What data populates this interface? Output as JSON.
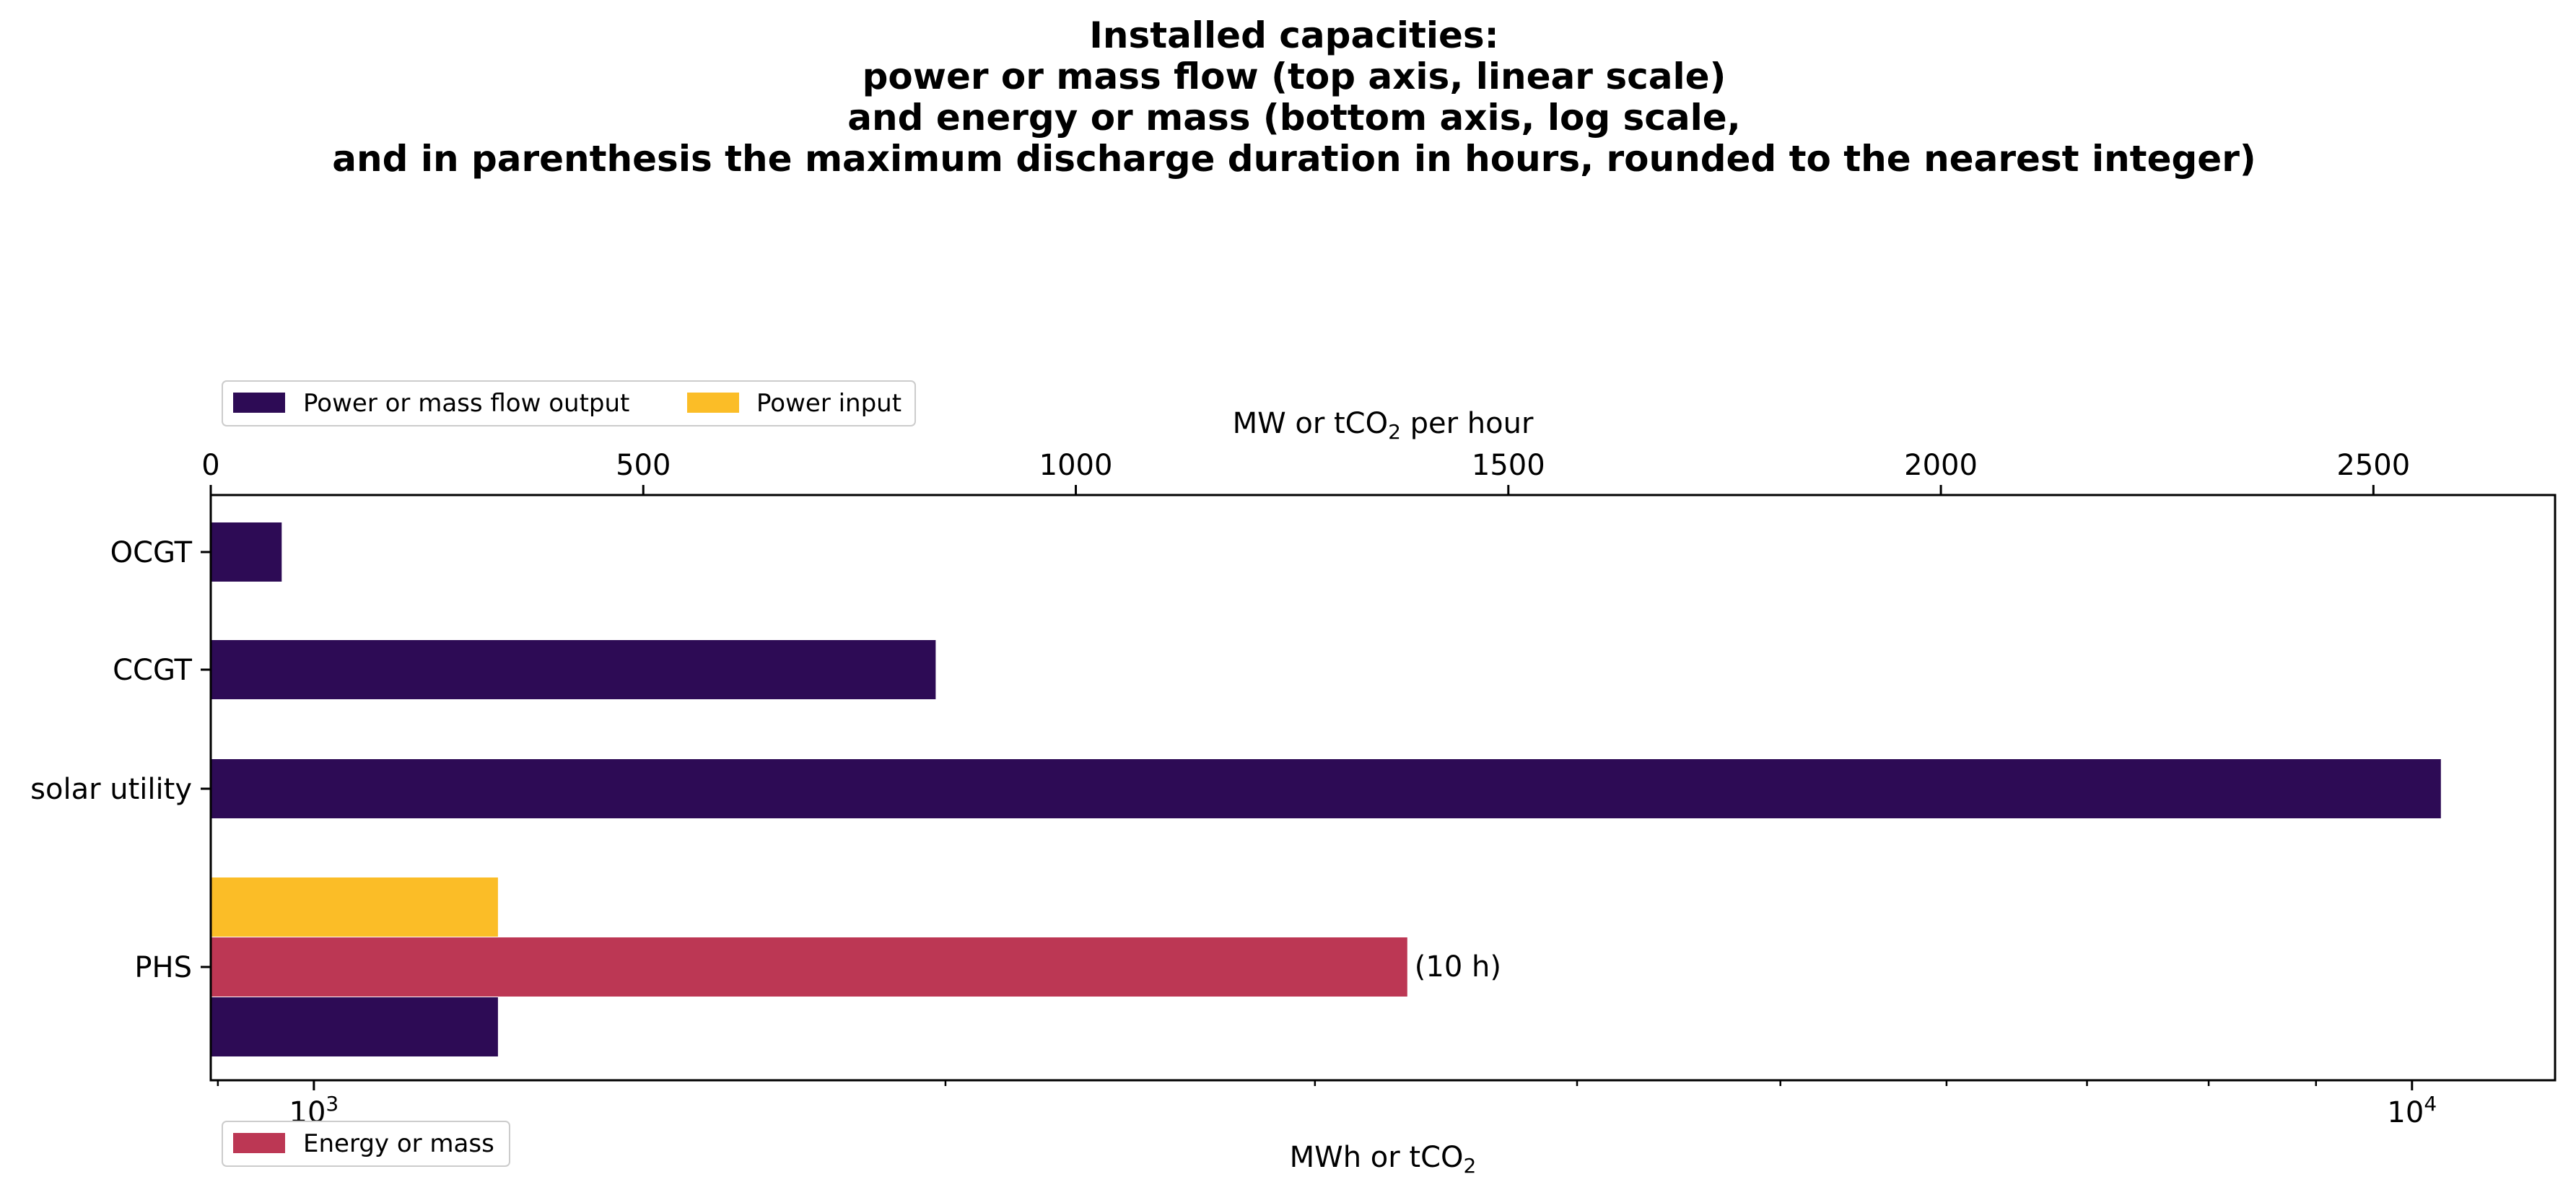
{
  "chart_data": {
    "type": "bar",
    "orientation": "horizontal",
    "title_lines": [
      "Installed capacities:",
      "power or mass flow (top axis, linear scale)",
      "and energy or mass (bottom axis, log scale,",
      "and in parenthesis the maximum discharge duration in hours, rounded to the nearest integer)"
    ],
    "categories": [
      "OCGT",
      "CCGT",
      "solar utility",
      "PHS"
    ],
    "top_axis": {
      "label_prefix": "MW or tCO",
      "label_sub": "2",
      "label_suffix": " per hour",
      "scale": "linear",
      "range": [
        0,
        2710
      ],
      "ticks": [
        0,
        500,
        1000,
        1500,
        2000,
        2500
      ],
      "tick_labels": [
        "0",
        "500",
        "1000",
        "1500",
        "2000",
        "2500"
      ]
    },
    "bottom_axis": {
      "label_prefix": "MWh or tCO",
      "label_sub": "2",
      "scale": "log",
      "range": [
        893,
        11700
      ],
      "major_ticks": [
        1000,
        10000
      ],
      "major_tick_labels": [
        {
          "base": "10",
          "exp": "3"
        },
        {
          "base": "10",
          "exp": "4"
        }
      ],
      "minor_ticks": [
        900,
        2000,
        3000,
        4000,
        5000,
        6000,
        7000,
        8000,
        9000
      ]
    },
    "series": [
      {
        "name": "Power or mass flow output",
        "axis": "top",
        "color": "#2d0b55",
        "values": [
          82,
          838,
          2578,
          332
        ]
      },
      {
        "name": "Power input",
        "axis": "top",
        "color": "#fbbd27",
        "values": [
          null,
          null,
          null,
          332
        ]
      },
      {
        "name": "Energy or mass",
        "axis": "bottom",
        "color": "#bc3754",
        "values": [
          null,
          null,
          null,
          3320
        ]
      }
    ],
    "annotations": [
      {
        "category": "PHS",
        "text": "(10 h)"
      }
    ],
    "legend_top": {
      "placement": "above-left",
      "entries": [
        "Power or mass flow output",
        "Power input"
      ]
    },
    "legend_bottom": {
      "placement": "below-left",
      "entries": [
        "Energy or mass"
      ]
    },
    "grid": false
  }
}
